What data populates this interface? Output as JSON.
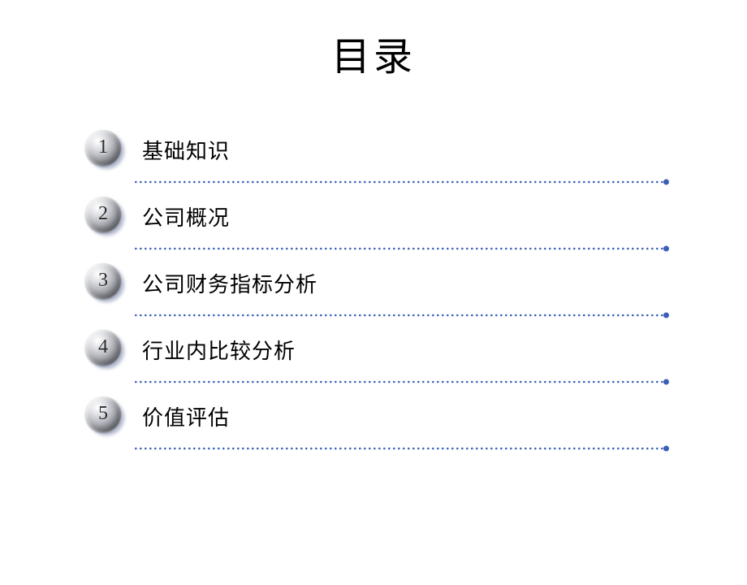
{
  "title": "目录",
  "dotted_line": {
    "color": "#3a5fb8",
    "dot_radius": 1.3,
    "dot_spacing": 6,
    "end_dot_radius": 3.5
  },
  "items": [
    {
      "number": "1",
      "label": "基础知识"
    },
    {
      "number": "2",
      "label": "公司概况"
    },
    {
      "number": "3",
      "label": "公司财务指标分析"
    },
    {
      "number": "4",
      "label": "行业内比较分析"
    },
    {
      "number": "5",
      "label": "价值评估"
    }
  ]
}
